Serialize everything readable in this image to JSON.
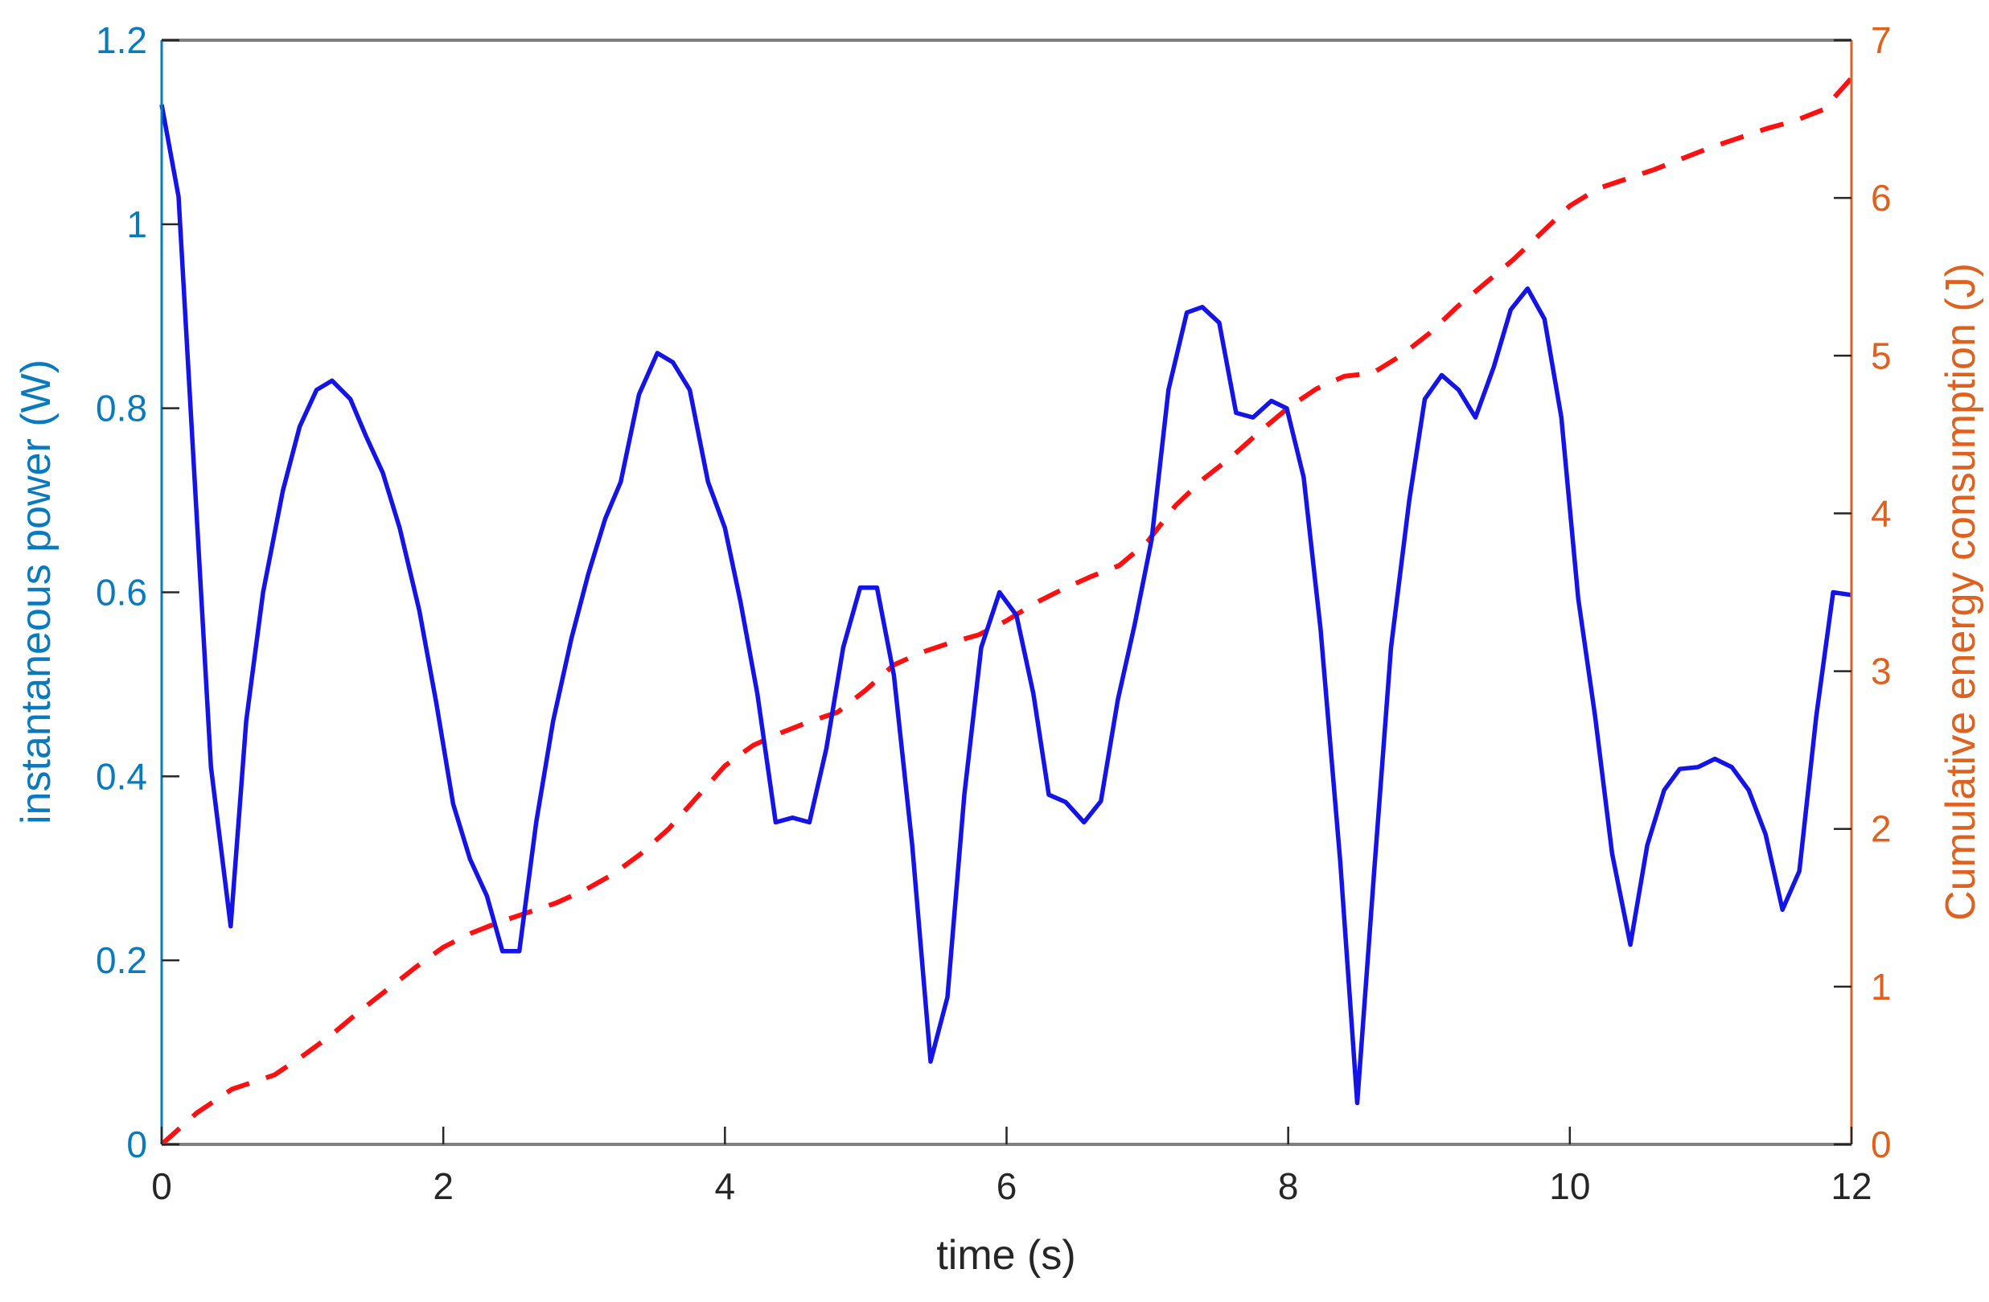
{
  "chart_data": {
    "type": "line",
    "title": "",
    "xlabel": "time (s)",
    "ylabel_left": "instantaneous power (W)",
    "ylabel_right": "Cumulative energy consumption (J)",
    "xlim": [
      0,
      12
    ],
    "ylim_left": [
      0,
      1.2
    ],
    "ylim_right": [
      0,
      7
    ],
    "grid": false,
    "legend": null,
    "x_ticks": [
      "0",
      "2",
      "4",
      "6",
      "8",
      "10",
      "12"
    ],
    "y_ticks_left": [
      "0",
      "0.2",
      "0.4",
      "0.6",
      "0.8",
      "1",
      "1.2"
    ],
    "y_ticks_right": [
      "0",
      "1",
      "2",
      "3",
      "4",
      "5",
      "6",
      "7"
    ],
    "colors": {
      "left_axis": "#0a7abf",
      "right_axis": "#e0601e",
      "power_line": "#1414e6",
      "energy_line": "#ff1010",
      "frame": "#7f7f7f"
    },
    "series": [
      {
        "name": "instantaneous power (W)",
        "axis": "left",
        "style": "solid",
        "x": [
          0,
          0.12,
          0.35,
          0.49,
          0.6,
          0.72,
          0.86,
          0.98,
          1.1,
          1.21,
          1.34,
          1.45,
          1.57,
          1.69,
          1.83,
          1.95,
          2.07,
          2.19,
          2.31,
          2.42,
          2.54,
          2.66,
          2.78,
          2.91,
          3.03,
          3.15,
          3.26,
          3.39,
          3.52,
          3.63,
          3.75,
          3.88,
          4.0,
          4.11,
          4.23,
          4.36,
          4.48,
          4.6,
          4.72,
          4.84,
          4.96,
          5.08,
          5.2,
          5.33,
          5.46,
          5.58,
          5.7,
          5.82,
          5.95,
          6.07,
          6.19,
          6.3,
          6.42,
          6.55,
          6.67,
          6.79,
          6.91,
          7.03,
          7.15,
          7.28,
          7.39,
          7.51,
          7.63,
          7.75,
          7.88,
          7.99,
          8.11,
          8.23,
          8.37,
          8.49,
          8.61,
          8.73,
          8.86,
          8.97,
          9.09,
          9.21,
          9.33,
          9.46,
          9.58,
          9.7,
          9.82,
          9.94,
          10.06,
          10.18,
          10.3,
          10.43,
          10.55,
          10.67,
          10.78,
          10.91,
          11.03,
          11.15,
          11.27,
          11.39,
          11.51,
          11.63,
          11.75,
          11.87,
          12.0
        ],
        "values": [
          1.13,
          1.03,
          0.41,
          0.237,
          0.46,
          0.6,
          0.71,
          0.78,
          0.82,
          0.83,
          0.81,
          0.77,
          0.73,
          0.67,
          0.58,
          0.48,
          0.37,
          0.31,
          0.27,
          0.21,
          0.21,
          0.35,
          0.46,
          0.55,
          0.62,
          0.68,
          0.72,
          0.815,
          0.86,
          0.85,
          0.82,
          0.72,
          0.67,
          0.59,
          0.49,
          0.35,
          0.355,
          0.35,
          0.43,
          0.54,
          0.605,
          0.605,
          0.51,
          0.325,
          0.09,
          0.16,
          0.38,
          0.54,
          0.6,
          0.575,
          0.49,
          0.38,
          0.372,
          0.35,
          0.373,
          0.483,
          0.565,
          0.657,
          0.82,
          0.904,
          0.91,
          0.893,
          0.795,
          0.79,
          0.808,
          0.8,
          0.725,
          0.56,
          0.307,
          0.045,
          0.296,
          0.54,
          0.7,
          0.81,
          0.836,
          0.82,
          0.79,
          0.845,
          0.907,
          0.93,
          0.897,
          0.79,
          0.593,
          0.465,
          0.316,
          0.217,
          0.325,
          0.385,
          0.408,
          0.41,
          0.419,
          0.41,
          0.385,
          0.337,
          0.255,
          0.297,
          0.465,
          0.6,
          0.597
        ]
      },
      {
        "name": "Cumulative energy consumption (J)",
        "axis": "right",
        "style": "dashed",
        "x": [
          0,
          0.25,
          0.5,
          0.8,
          1.0,
          1.2,
          1.4,
          1.6,
          1.8,
          2.0,
          2.2,
          2.4,
          2.6,
          2.8,
          3.0,
          3.2,
          3.4,
          3.6,
          3.8,
          4.0,
          4.2,
          4.4,
          4.6,
          4.8,
          5.0,
          5.2,
          5.4,
          5.6,
          5.8,
          6.0,
          6.2,
          6.4,
          6.6,
          6.8,
          7.0,
          7.2,
          7.4,
          7.6,
          7.8,
          8.0,
          8.2,
          8.4,
          8.6,
          8.8,
          9.0,
          9.2,
          9.4,
          9.6,
          9.8,
          10.0,
          10.2,
          10.4,
          10.6,
          10.8,
          11.0,
          11.2,
          11.4,
          11.6,
          11.8,
          12.0
        ],
        "values": [
          0,
          0.2,
          0.35,
          0.44,
          0.56,
          0.69,
          0.84,
          0.98,
          1.12,
          1.25,
          1.34,
          1.41,
          1.47,
          1.53,
          1.61,
          1.71,
          1.84,
          2.0,
          2.2,
          2.4,
          2.53,
          2.61,
          2.68,
          2.74,
          2.88,
          3.04,
          3.12,
          3.18,
          3.23,
          3.32,
          3.43,
          3.52,
          3.6,
          3.67,
          3.82,
          4.05,
          4.22,
          4.36,
          4.52,
          4.67,
          4.79,
          4.87,
          4.89,
          5.0,
          5.14,
          5.31,
          5.46,
          5.61,
          5.78,
          5.95,
          6.06,
          6.12,
          6.18,
          6.25,
          6.32,
          6.38,
          6.44,
          6.49,
          6.56,
          6.76
        ]
      }
    ]
  }
}
